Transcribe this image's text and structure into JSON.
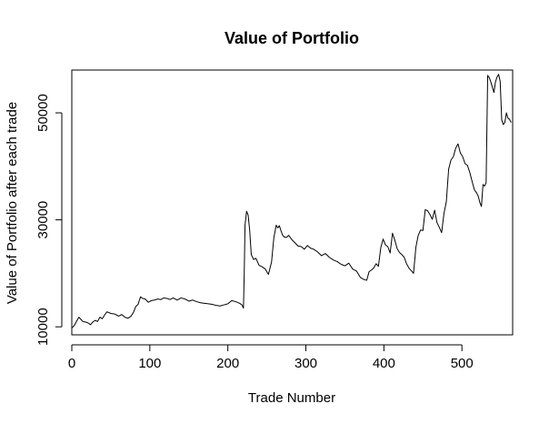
{
  "chart_data": {
    "type": "line",
    "title": "Value of Portfolio",
    "xlabel": "Trade Number",
    "ylabel": "Value of Portfolio after each trade",
    "xlim": [
      0,
      565
    ],
    "ylim": [
      8500,
      58000
    ],
    "x_ticks": [
      0,
      100,
      200,
      300,
      400,
      500
    ],
    "x_tick_labels": [
      "0",
      "100",
      "200",
      "300",
      "400",
      "500"
    ],
    "y_ticks": [
      10000,
      30000,
      50000
    ],
    "y_tick_labels": [
      "10000",
      "30000",
      "50000"
    ],
    "grid": false,
    "legend": "none",
    "line_color": "#000000",
    "series": [
      {
        "x": [
          0,
          3,
          6,
          9,
          11,
          14,
          17,
          20,
          24,
          27,
          30,
          33,
          36,
          39,
          42,
          45,
          50,
          55,
          60,
          64,
          68,
          72,
          76,
          79,
          82,
          85,
          88,
          91,
          94,
          98,
          102,
          106,
          110,
          114,
          118,
          122,
          126,
          130,
          135,
          140,
          145,
          150,
          155,
          160,
          165,
          170,
          175,
          180,
          185,
          190,
          195,
          200,
          205,
          210,
          215,
          218,
          220,
          221,
          222,
          224,
          226,
          228,
          230,
          233,
          236,
          240,
          244,
          248,
          252,
          256,
          259,
          262,
          264,
          266,
          268,
          270,
          272,
          275,
          278,
          282,
          286,
          290,
          294,
          298,
          302,
          306,
          310,
          315,
          320,
          325,
          330,
          335,
          340,
          345,
          350,
          355,
          360,
          365,
          370,
          375,
          378,
          381,
          384,
          387,
          390,
          393,
          396,
          399,
          402,
          405,
          408,
          411,
          414,
          417,
          420,
          423,
          426,
          429,
          432,
          435,
          438,
          441,
          444,
          447,
          450,
          453,
          456,
          459,
          462,
          465,
          468,
          471,
          474,
          477,
          480,
          483,
          486,
          489,
          492,
          495,
          498,
          501,
          504,
          507,
          510,
          513,
          516,
          519,
          521,
          523,
          525,
          527,
          529,
          531,
          533,
          535,
          537,
          539,
          541,
          543,
          545,
          547,
          549,
          551,
          553,
          555,
          557,
          559,
          561,
          563
        ],
        "y": [
          9800,
          10200,
          11000,
          11800,
          11500,
          11000,
          10900,
          10800,
          10400,
          10900,
          11200,
          11000,
          11800,
          11500,
          12200,
          12800,
          12500,
          12400,
          12000,
          12300,
          11800,
          11600,
          12000,
          12700,
          13800,
          14200,
          15600,
          15300,
          15200,
          14600,
          14900,
          15000,
          15200,
          15100,
          15400,
          15300,
          15100,
          15400,
          15000,
          15400,
          15200,
          14800,
          15000,
          14700,
          14500,
          14400,
          14300,
          14200,
          14000,
          13900,
          14100,
          14300,
          14900,
          14700,
          14400,
          14100,
          13500,
          20000,
          29000,
          31600,
          30900,
          28000,
          23500,
          22600,
          22800,
          21500,
          21200,
          20800,
          19800,
          22100,
          26700,
          29000,
          28500,
          28900,
          28000,
          27200,
          26800,
          26700,
          27100,
          26300,
          25700,
          25100,
          25000,
          24500,
          25200,
          24700,
          24500,
          24000,
          23300,
          23700,
          23000,
          22500,
          22200,
          21700,
          21400,
          21900,
          20800,
          20400,
          19200,
          18800,
          18700,
          20300,
          20600,
          21000,
          21800,
          21300,
          24800,
          26400,
          25300,
          25000,
          23800,
          27500,
          26200,
          24600,
          23900,
          23500,
          23000,
          21800,
          21000,
          20500,
          20000,
          24900,
          27100,
          28100,
          28000,
          31900,
          31700,
          31000,
          30100,
          31800,
          29500,
          28600,
          27600,
          31200,
          33400,
          39500,
          41200,
          41800,
          43400,
          44200,
          42500,
          41800,
          40500,
          40200,
          38900,
          37200,
          35600,
          35000,
          34400,
          33200,
          32500,
          36600,
          36300,
          36900,
          57000,
          56600,
          55800,
          54800,
          53800,
          55800,
          56700,
          57200,
          55900,
          48700,
          47800,
          48200,
          50000,
          49000,
          48800,
          48200
        ]
      }
    ]
  }
}
